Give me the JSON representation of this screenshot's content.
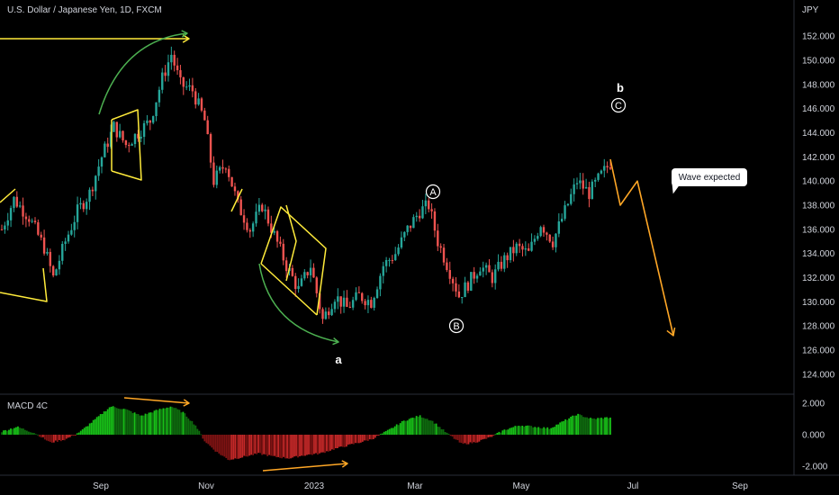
{
  "header": {
    "title": "U.S. Dollar / Japanese Yen, 1D, FXCM"
  },
  "axis": {
    "currency": "JPY"
  },
  "macd": {
    "label": "MACD 4C",
    "ticks": [
      "2.000",
      "0.000",
      "-2.000"
    ]
  },
  "annotations": {
    "wave_a": "a",
    "wave_b": "b",
    "circle_A": "A",
    "circle_B": "B",
    "circle_C": "C",
    "callout": "Wave expected"
  },
  "colors": {
    "up": "#26a69a",
    "down": "#ef5350",
    "macd_up": "#1b9e1b",
    "macd_down": "#b22222",
    "yellow": "#ffeb3b",
    "green_arrow": "#4caf50",
    "orange": "#ffa726"
  },
  "chart_data": {
    "type": "candlestick",
    "title": "U.S. Dollar / Japanese Yen, 1D, FXCM",
    "ylim": [
      122.5,
      153.5
    ],
    "price_ticks": [
      "152.000",
      "150.000",
      "148.000",
      "146.000",
      "144.000",
      "142.000",
      "140.000",
      "138.000",
      "136.000",
      "134.000",
      "132.000",
      "130.000",
      "128.000",
      "126.000",
      "124.000"
    ],
    "x_ticks": [
      "Sep",
      "Nov",
      "2023",
      "Mar",
      "May",
      "Jul",
      "Sep"
    ],
    "price_path": [
      {
        "t": 0,
        "v": 136.0
      },
      {
        "t": 8,
        "v": 138.5
      },
      {
        "t": 18,
        "v": 137.0
      },
      {
        "t": 28,
        "v": 134.5
      },
      {
        "t": 34,
        "v": 132.0
      },
      {
        "t": 42,
        "v": 135.0
      },
      {
        "t": 50,
        "v": 137.5
      },
      {
        "t": 58,
        "v": 139.0
      },
      {
        "t": 66,
        "v": 142.0
      },
      {
        "t": 74,
        "v": 144.5
      },
      {
        "t": 82,
        "v": 143.0
      },
      {
        "t": 90,
        "v": 144.0
      },
      {
        "t": 98,
        "v": 145.0
      },
      {
        "t": 106,
        "v": 148.5
      },
      {
        "t": 112,
        "v": 150.5
      },
      {
        "t": 118,
        "v": 148.0
      },
      {
        "t": 126,
        "v": 147.5
      },
      {
        "t": 134,
        "v": 145.0
      },
      {
        "t": 140,
        "v": 140.0
      },
      {
        "t": 148,
        "v": 141.5
      },
      {
        "t": 156,
        "v": 138.0
      },
      {
        "t": 164,
        "v": 136.0
      },
      {
        "t": 172,
        "v": 138.0
      },
      {
        "t": 180,
        "v": 135.5
      },
      {
        "t": 188,
        "v": 133.0
      },
      {
        "t": 196,
        "v": 131.0
      },
      {
        "t": 204,
        "v": 133.0
      },
      {
        "t": 212,
        "v": 128.5
      },
      {
        "t": 220,
        "v": 130.5
      },
      {
        "t": 228,
        "v": 129.5
      },
      {
        "t": 236,
        "v": 130.5
      },
      {
        "t": 244,
        "v": 130.0
      },
      {
        "t": 252,
        "v": 133.0
      },
      {
        "t": 260,
        "v": 134.0
      },
      {
        "t": 268,
        "v": 136.0
      },
      {
        "t": 276,
        "v": 137.5
      },
      {
        "t": 282,
        "v": 138.0
      },
      {
        "t": 288,
        "v": 135.0
      },
      {
        "t": 296,
        "v": 132.5
      },
      {
        "t": 302,
        "v": 130.5
      },
      {
        "t": 308,
        "v": 131.5
      },
      {
        "t": 316,
        "v": 133.0
      },
      {
        "t": 324,
        "v": 132.0
      },
      {
        "t": 332,
        "v": 133.5
      },
      {
        "t": 340,
        "v": 134.5
      },
      {
        "t": 348,
        "v": 134.0
      },
      {
        "t": 356,
        "v": 136.5
      },
      {
        "t": 364,
        "v": 135.0
      },
      {
        "t": 372,
        "v": 137.5
      },
      {
        "t": 380,
        "v": 140.0
      },
      {
        "t": 388,
        "v": 139.0
      },
      {
        "t": 396,
        "v": 140.5
      },
      {
        "t": 402,
        "v": 141.5
      }
    ],
    "macd_path": [
      {
        "t": 0,
        "v": 0.2
      },
      {
        "t": 10,
        "v": 0.5
      },
      {
        "t": 22,
        "v": 0.1
      },
      {
        "t": 32,
        "v": -0.5
      },
      {
        "t": 42,
        "v": -0.3
      },
      {
        "t": 52,
        "v": 0.2
      },
      {
        "t": 62,
        "v": 1.0
      },
      {
        "t": 72,
        "v": 1.8
      },
      {
        "t": 82,
        "v": 1.6
      },
      {
        "t": 92,
        "v": 1.2
      },
      {
        "t": 104,
        "v": 1.6
      },
      {
        "t": 112,
        "v": 1.8
      },
      {
        "t": 120,
        "v": 1.4
      },
      {
        "t": 128,
        "v": 0.6
      },
      {
        "t": 134,
        "v": -0.4
      },
      {
        "t": 142,
        "v": -1.1
      },
      {
        "t": 150,
        "v": -1.6
      },
      {
        "t": 160,
        "v": -1.4
      },
      {
        "t": 170,
        "v": -1.2
      },
      {
        "t": 180,
        "v": -1.4
      },
      {
        "t": 190,
        "v": -1.5
      },
      {
        "t": 200,
        "v": -1.3
      },
      {
        "t": 210,
        "v": -1.2
      },
      {
        "t": 220,
        "v": -0.9
      },
      {
        "t": 232,
        "v": -0.6
      },
      {
        "t": 244,
        "v": -0.3
      },
      {
        "t": 254,
        "v": 0.2
      },
      {
        "t": 266,
        "v": 0.9
      },
      {
        "t": 276,
        "v": 1.2
      },
      {
        "t": 284,
        "v": 0.9
      },
      {
        "t": 294,
        "v": 0.1
      },
      {
        "t": 304,
        "v": -0.6
      },
      {
        "t": 312,
        "v": -0.5
      },
      {
        "t": 322,
        "v": -0.2
      },
      {
        "t": 332,
        "v": 0.3
      },
      {
        "t": 342,
        "v": 0.6
      },
      {
        "t": 352,
        "v": 0.5
      },
      {
        "t": 362,
        "v": 0.4
      },
      {
        "t": 372,
        "v": 0.9
      },
      {
        "t": 380,
        "v": 1.3
      },
      {
        "t": 390,
        "v": 1.0
      },
      {
        "t": 402,
        "v": 1.1
      }
    ],
    "forecast": [
      {
        "t": 402,
        "v": 141.8
      },
      {
        "t": 410,
        "v": 138.0
      },
      {
        "t": 420,
        "v": 140.0
      },
      {
        "t": 447,
        "v": 127.2
      }
    ]
  }
}
